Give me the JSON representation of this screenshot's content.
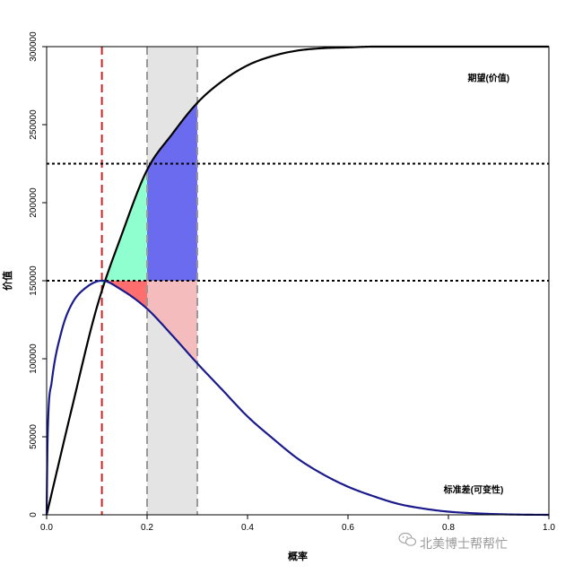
{
  "chart_data": {
    "type": "line",
    "xlabel": "概率",
    "ylabel": "价值",
    "xlim": [
      0,
      1
    ],
    "ylim": [
      0,
      300000
    ],
    "x_ticks": [
      "0.0",
      "0.2",
      "0.4",
      "0.6",
      "0.8",
      "1.0"
    ],
    "y_ticks": [
      "0",
      "50000",
      "100000",
      "150000",
      "200000",
      "250000",
      "300000"
    ],
    "grid": false,
    "series": [
      {
        "name": "期望(价值)",
        "color": "#000000",
        "x": [
          0,
          0.05,
          0.1,
          0.15,
          0.2,
          0.25,
          0.3,
          0.35,
          0.4,
          0.45,
          0.5,
          0.55,
          0.6,
          0.65,
          0.7,
          0.8,
          0.9,
          1.0
        ],
        "y": [
          0,
          68000,
          133000,
          180000,
          221000,
          244000,
          264000,
          278000,
          288000,
          294000,
          297500,
          299000,
          299500,
          300000,
          300000,
          300000,
          300000,
          300000
        ]
      },
      {
        "name": "标准差(可变性)",
        "color": "#1a1a8c",
        "x": [
          0,
          0.002,
          0.01,
          0.03,
          0.05,
          0.08,
          0.11,
          0.15,
          0.2,
          0.25,
          0.3,
          0.35,
          0.4,
          0.45,
          0.5,
          0.55,
          0.6,
          0.65,
          0.7,
          0.75,
          0.8,
          0.85,
          0.9,
          0.95,
          1.0
        ],
        "y": [
          0,
          50000,
          85000,
          118000,
          135000,
          146000,
          150000,
          144000,
          132000,
          115000,
          97000,
          80000,
          63000,
          49000,
          36000,
          26000,
          18000,
          12000,
          7000,
          4000,
          2000,
          1000,
          400,
          100,
          0
        ]
      }
    ],
    "reference_lines": {
      "vertical": [
        {
          "x": 0.11,
          "color": "#cc2222",
          "style": "dashed"
        },
        {
          "x": 0.2,
          "color": "#999999",
          "style": "dashed"
        },
        {
          "x": 0.3,
          "color": "#999999",
          "style": "dashed"
        }
      ],
      "horizontal": [
        {
          "y": 225000,
          "color": "#000000",
          "style": "dotted"
        },
        {
          "y": 150000,
          "color": "#000000",
          "style": "dotted"
        }
      ]
    },
    "shaded_band": {
      "x": [
        0.2,
        0.3
      ],
      "color": "#e4e4e4"
    },
    "regions": [
      {
        "name": "green-area",
        "color": "#8fffcf",
        "x": [
          0.11,
          0.2
        ],
        "between": [
          "expectation",
          150000
        ]
      },
      {
        "name": "blue-area",
        "color": "#6b6bf0",
        "x": [
          0.2,
          0.3
        ],
        "between": [
          "expectation",
          150000
        ]
      },
      {
        "name": "red-area",
        "color": "#ff6e6e",
        "x": [
          0.11,
          0.2
        ],
        "between": [
          150000,
          "stddev"
        ]
      },
      {
        "name": "pink-area",
        "color": "#f4bcbc",
        "x": [
          0.2,
          0.3
        ],
        "between": [
          150000,
          "stddev"
        ]
      }
    ],
    "annotations": [
      {
        "text": "期望(价值)",
        "x": 0.88,
        "y": 278000
      },
      {
        "text": "标准差(可变性)",
        "x": 0.85,
        "y": 14000
      }
    ]
  },
  "watermark": "北美博士帮帮忙"
}
